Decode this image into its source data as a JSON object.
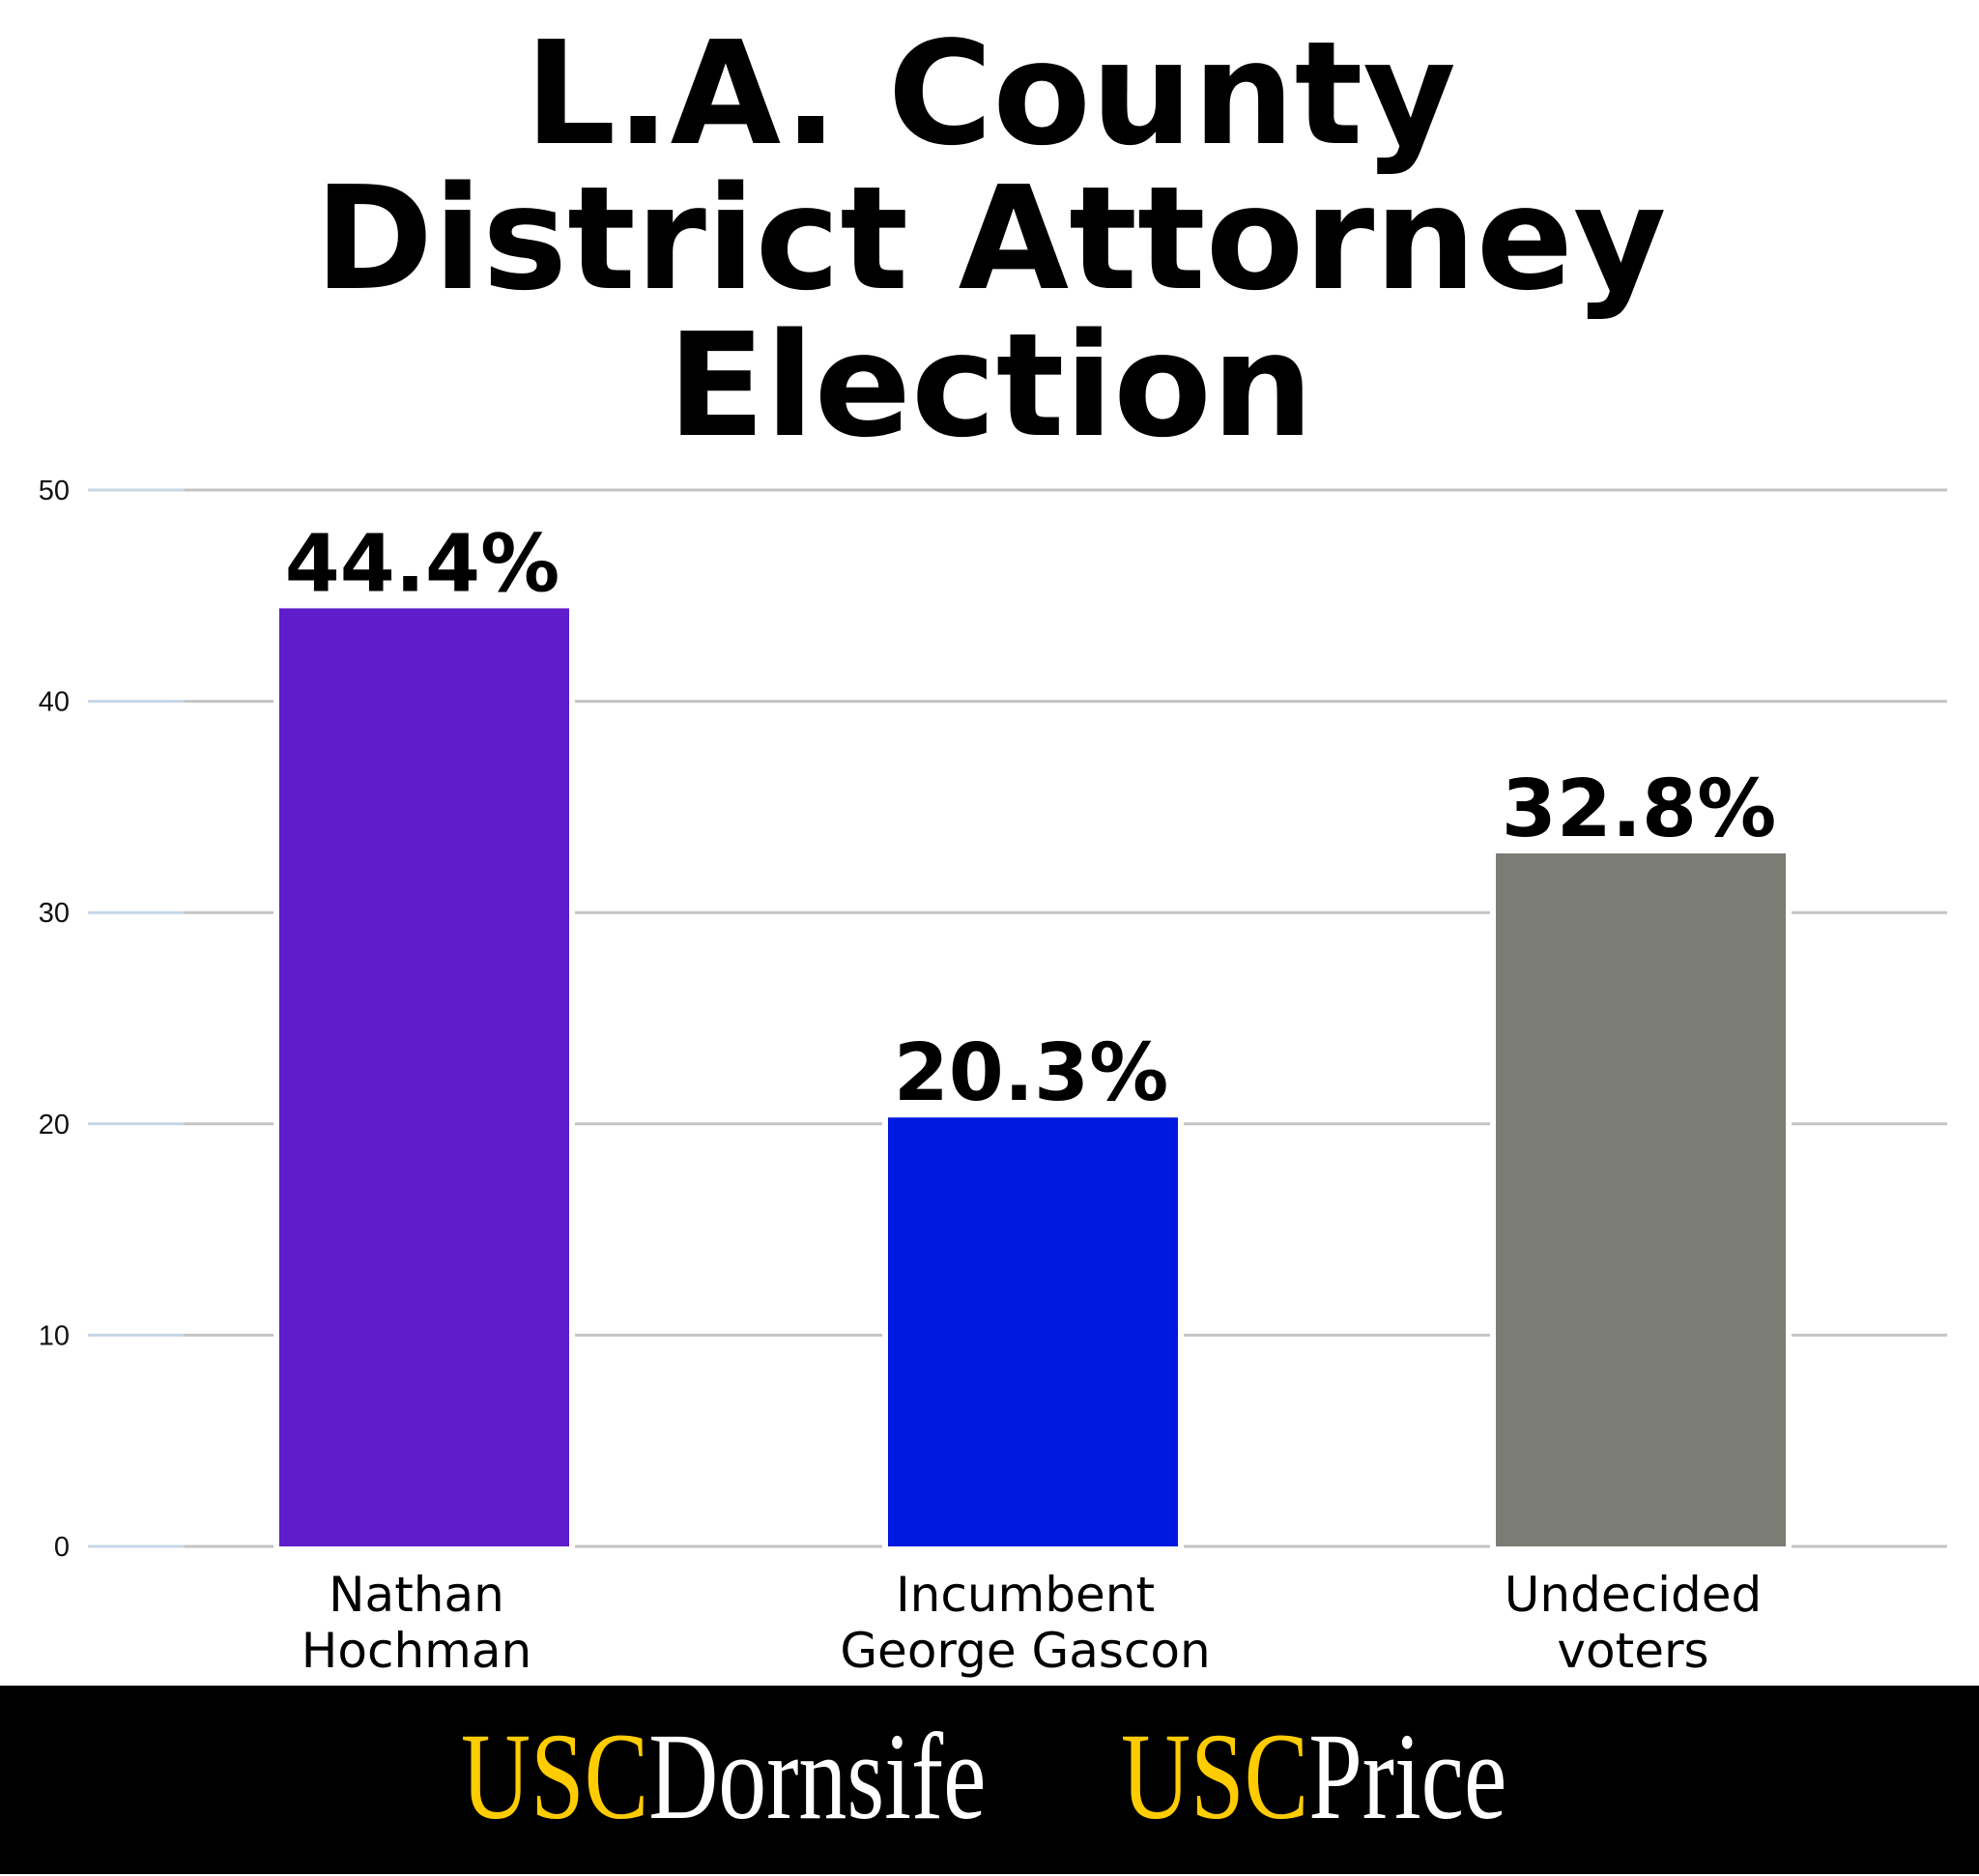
{
  "chart_data": {
    "type": "bar",
    "title": [
      "L.A. County",
      "District Attorney",
      "Election"
    ],
    "categories": [
      [
        "Nathan",
        "Hochman"
      ],
      [
        "Incumbent",
        "George Gascon"
      ],
      [
        "Undecided",
        "voters"
      ]
    ],
    "values": [
      44.4,
      20.3,
      32.8
    ],
    "data_labels": [
      "44.4%",
      "20.3%",
      "32.8%"
    ],
    "colors": [
      "#5E1CCB",
      "#0019E0",
      "#7B7C74"
    ],
    "yticks": [
      "0",
      "10",
      "20",
      "30",
      "40",
      "50"
    ],
    "ylim": [
      0,
      50
    ],
    "grid": true,
    "xlabel": "",
    "ylabel": ""
  },
  "footer": {
    "logos": [
      {
        "prefix": "USC",
        "name": "Dornsife"
      },
      {
        "prefix": "USC",
        "name": "Price"
      }
    ],
    "prefix_color": "#FFCC00",
    "name_color": "#FFFFFF",
    "background": "#000000"
  }
}
